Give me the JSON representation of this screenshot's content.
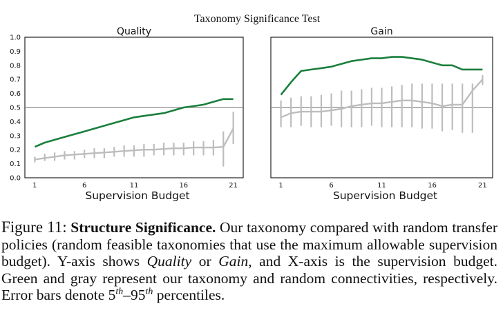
{
  "figure_title": "Taxonomy Significance Test",
  "colors": {
    "green": "#1a7f3c",
    "gray": "#bdbdbd",
    "refline": "#888888",
    "frame": "#222222"
  },
  "chart_data": [
    {
      "type": "line",
      "title": "Quality",
      "xlabel": "Supervision Budget",
      "ylabel": "",
      "xlim": [
        0,
        22
      ],
      "ylim": [
        0.0,
        1.0
      ],
      "xticks": [
        1,
        6,
        11,
        16,
        21
      ],
      "yticks": [
        0.0,
        0.1,
        0.2,
        0.3,
        0.4,
        0.5,
        0.6,
        0.7,
        0.8,
        0.9,
        1.0
      ],
      "ytick_labels": [
        "0.0",
        "0.1",
        "0.2",
        "0.3",
        "0.4",
        "0.5",
        "0.6",
        "0.7",
        "0.8",
        "0.9",
        "1.0"
      ],
      "reference_line": 0.5,
      "series": [
        {
          "color": "green",
          "x": [
            1,
            2,
            3,
            4,
            5,
            6,
            7,
            8,
            9,
            10,
            11,
            12,
            13,
            14,
            15,
            16,
            17,
            18,
            19,
            20,
            21
          ],
          "values": [
            0.22,
            0.25,
            0.27,
            0.29,
            0.31,
            0.33,
            0.35,
            0.37,
            0.39,
            0.41,
            0.43,
            0.44,
            0.45,
            0.46,
            0.48,
            0.5,
            0.51,
            0.52,
            0.54,
            0.56,
            0.56
          ]
        },
        {
          "color": "gray",
          "x": [
            1,
            2,
            3,
            4,
            5,
            6,
            7,
            8,
            9,
            10,
            11,
            12,
            13,
            14,
            15,
            16,
            17,
            18,
            19,
            20,
            21
          ],
          "values": [
            0.13,
            0.14,
            0.15,
            0.16,
            0.165,
            0.17,
            0.175,
            0.18,
            0.185,
            0.19,
            0.195,
            0.2,
            0.2,
            0.205,
            0.21,
            0.21,
            0.215,
            0.215,
            0.215,
            0.22,
            0.35
          ],
          "err_low": [
            0.11,
            0.12,
            0.12,
            0.13,
            0.13,
            0.14,
            0.14,
            0.14,
            0.15,
            0.15,
            0.15,
            0.15,
            0.16,
            0.16,
            0.16,
            0.16,
            0.16,
            0.16,
            0.16,
            0.08,
            0.24
          ],
          "err_high": [
            0.15,
            0.17,
            0.18,
            0.19,
            0.19,
            0.2,
            0.21,
            0.21,
            0.22,
            0.23,
            0.23,
            0.24,
            0.24,
            0.25,
            0.25,
            0.25,
            0.26,
            0.26,
            0.27,
            0.33,
            0.47
          ]
        }
      ]
    },
    {
      "type": "line",
      "title": "Gain",
      "xlabel": "Supervision Budget",
      "ylabel": "",
      "xlim": [
        0,
        22
      ],
      "ylim": [
        0.0,
        1.0
      ],
      "xticks": [
        1,
        6,
        11,
        16,
        21
      ],
      "reference_line": 0.5,
      "series": [
        {
          "color": "green",
          "x": [
            1,
            2,
            3,
            4,
            5,
            6,
            7,
            8,
            9,
            10,
            11,
            12,
            13,
            14,
            15,
            16,
            17,
            18,
            19,
            20,
            21
          ],
          "values": [
            0.59,
            0.68,
            0.76,
            0.77,
            0.78,
            0.79,
            0.81,
            0.83,
            0.84,
            0.85,
            0.85,
            0.86,
            0.86,
            0.85,
            0.84,
            0.82,
            0.8,
            0.8,
            0.77,
            0.77,
            0.77
          ]
        },
        {
          "color": "gray",
          "x": [
            1,
            2,
            3,
            4,
            5,
            6,
            7,
            8,
            9,
            10,
            11,
            12,
            13,
            14,
            15,
            16,
            17,
            18,
            19,
            20,
            21
          ],
          "values": [
            0.43,
            0.46,
            0.47,
            0.47,
            0.47,
            0.48,
            0.49,
            0.51,
            0.52,
            0.53,
            0.53,
            0.54,
            0.55,
            0.55,
            0.54,
            0.53,
            0.51,
            0.52,
            0.52,
            0.62,
            0.7
          ],
          "err_low": [
            0.36,
            0.36,
            0.37,
            0.36,
            0.36,
            0.37,
            0.36,
            0.36,
            0.36,
            0.37,
            0.36,
            0.36,
            0.36,
            0.36,
            0.35,
            0.35,
            0.33,
            0.34,
            0.32,
            0.32,
            0.66
          ],
          "err_high": [
            0.55,
            0.57,
            0.58,
            0.58,
            0.59,
            0.6,
            0.62,
            0.62,
            0.63,
            0.64,
            0.64,
            0.65,
            0.66,
            0.67,
            0.67,
            0.67,
            0.67,
            0.67,
            0.67,
            0.67,
            0.73
          ]
        }
      ]
    }
  ],
  "caption": {
    "label": "Figure 11:",
    "bold": "Structure Significance.",
    "t1": " Our taxonomy compared with random transfer policies (random feasible taxonomies that use the maximum allowable supervision budget). Y-axis shows ",
    "i1": "Quality",
    "t2": " or ",
    "i2": "Gain",
    "t3": ", and X-axis is the supervision budget. Green and gray represent our taxonomy and random connectivities, respectively. Error bars denote 5",
    "s1": "th",
    "t4": "–95",
    "s2": "th",
    "t5": " percentiles."
  }
}
